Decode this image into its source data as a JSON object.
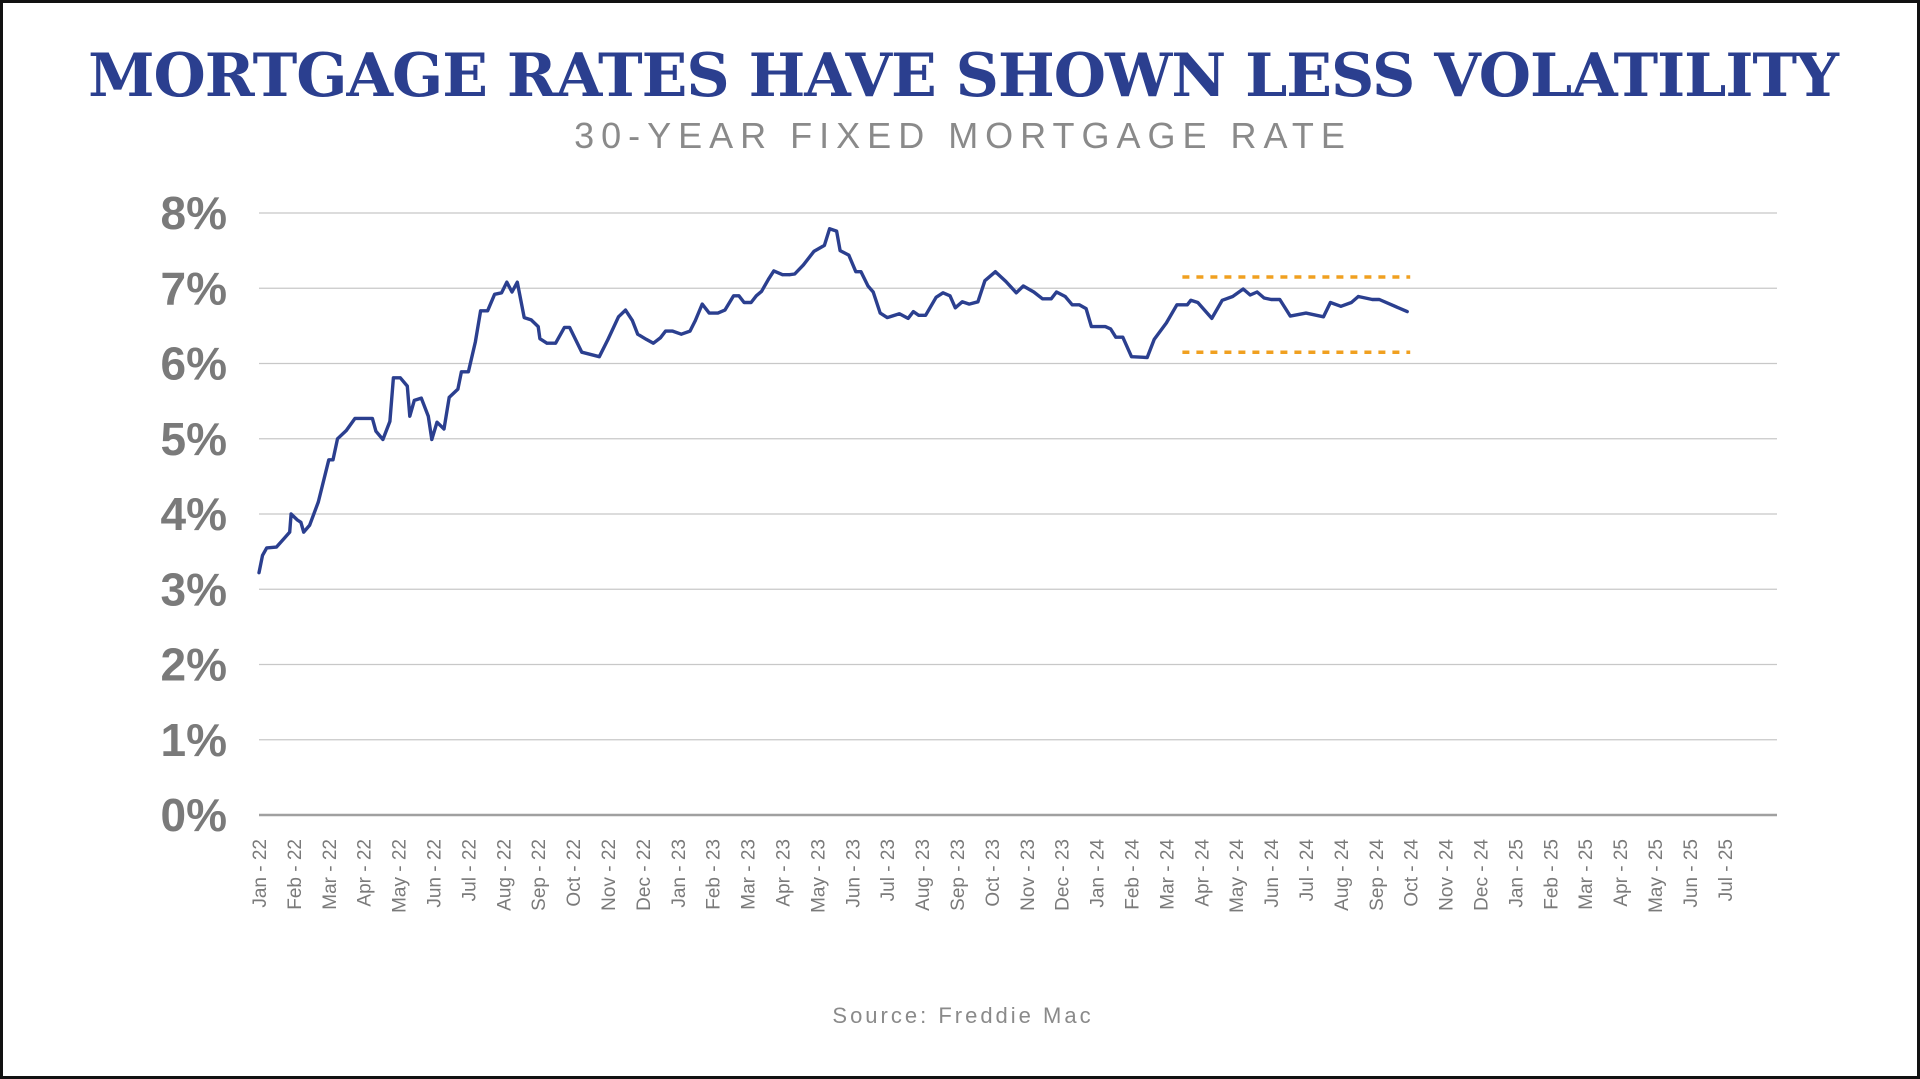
{
  "title": "MORTGAGE RATES HAVE SHOWN LESS VOLATILITY",
  "subtitle": "30-YEAR FIXED MORTGAGE RATE",
  "source": "Source: Freddie Mac",
  "colors": {
    "line": "#2b3f8f",
    "band": "#f0a020",
    "grid": "#c8c8c8",
    "axis": "#a0a0a0",
    "tick_text": "#7a7a7a"
  },
  "chart_data": {
    "type": "line",
    "title": "MORTGAGE RATES HAVE SHOWN LESS VOLATILITY",
    "subtitle": "30-YEAR FIXED MORTGAGE RATE",
    "xlabel": "",
    "ylabel": "",
    "ylim": [
      0,
      8
    ],
    "yticks": [
      {
        "value": 0,
        "label": "0%"
      },
      {
        "value": 1,
        "label": "1%"
      },
      {
        "value": 2,
        "label": "2%"
      },
      {
        "value": 3,
        "label": "3%"
      },
      {
        "value": 4,
        "label": "4%"
      },
      {
        "value": 5,
        "label": "5%"
      },
      {
        "value": 6,
        "label": "6%"
      },
      {
        "value": 7,
        "label": "7%"
      },
      {
        "value": 8,
        "label": "8%"
      }
    ],
    "grid": true,
    "legend": "none",
    "categories": [
      "Jan - 22",
      "Feb - 22",
      "Mar - 22",
      "Apr - 22",
      "May - 22",
      "Jun - 22",
      "Jul - 22",
      "Aug - 22",
      "Sep - 22",
      "Oct - 22",
      "Nov - 22",
      "Dec - 22",
      "Jan - 23",
      "Feb - 23",
      "Mar - 23",
      "Apr - 23",
      "May - 23",
      "Jun - 23",
      "Jul - 23",
      "Aug - 23",
      "Sep - 23",
      "Oct - 23",
      "Nov - 23",
      "Dec - 23",
      "Jan - 24",
      "Feb - 24",
      "Mar - 24",
      "Apr - 24",
      "May - 24",
      "Jun - 24",
      "Jul - 24",
      "Aug - 24",
      "Sep - 24",
      "Oct - 24",
      "Nov - 24",
      "Dec - 24",
      "Jan - 25",
      "Feb - 25",
      "Mar - 25",
      "Apr - 25",
      "May - 25",
      "Jun - 25",
      "Jul - 25"
    ],
    "series": [
      {
        "values": [
          [
            0.0,
            3.22
          ],
          [
            0.1,
            3.45
          ],
          [
            0.22,
            3.55
          ],
          [
            0.5,
            3.56
          ],
          [
            0.75,
            3.69
          ],
          [
            0.88,
            3.76
          ],
          [
            0.92,
            4.0
          ],
          [
            1.1,
            3.92
          ],
          [
            1.2,
            3.89
          ],
          [
            1.28,
            3.76
          ],
          [
            1.45,
            3.85
          ],
          [
            1.7,
            4.16
          ],
          [
            2.0,
            4.72
          ],
          [
            2.12,
            4.72
          ],
          [
            2.25,
            5.0
          ],
          [
            2.5,
            5.11
          ],
          [
            2.75,
            5.27
          ],
          [
            2.9,
            5.27
          ],
          [
            3.25,
            5.27
          ],
          [
            3.35,
            5.1
          ],
          [
            3.55,
            4.99
          ],
          [
            3.75,
            5.23
          ],
          [
            3.85,
            5.81
          ],
          [
            4.05,
            5.81
          ],
          [
            4.25,
            5.7
          ],
          [
            4.32,
            5.3
          ],
          [
            4.45,
            5.51
          ],
          [
            4.65,
            5.54
          ],
          [
            4.85,
            5.3
          ],
          [
            4.95,
            4.99
          ],
          [
            5.1,
            5.22
          ],
          [
            5.3,
            5.13
          ],
          [
            5.45,
            5.55
          ],
          [
            5.7,
            5.66
          ],
          [
            5.8,
            5.89
          ],
          [
            6.0,
            5.89
          ],
          [
            6.2,
            6.29
          ],
          [
            6.35,
            6.7
          ],
          [
            6.55,
            6.7
          ],
          [
            6.75,
            6.92
          ],
          [
            6.95,
            6.94
          ],
          [
            7.1,
            7.08
          ],
          [
            7.25,
            6.95
          ],
          [
            7.4,
            7.08
          ],
          [
            7.6,
            6.61
          ],
          [
            7.8,
            6.58
          ],
          [
            8.0,
            6.49
          ],
          [
            8.05,
            6.33
          ],
          [
            8.25,
            6.27
          ],
          [
            8.5,
            6.27
          ],
          [
            8.75,
            6.48
          ],
          [
            8.9,
            6.48
          ],
          [
            9.25,
            6.15
          ],
          [
            9.75,
            6.09
          ],
          [
            10.0,
            6.32
          ],
          [
            10.3,
            6.62
          ],
          [
            10.5,
            6.71
          ],
          [
            10.7,
            6.57
          ],
          [
            10.85,
            6.39
          ],
          [
            11.1,
            6.32
          ],
          [
            11.3,
            6.27
          ],
          [
            11.5,
            6.34
          ],
          [
            11.65,
            6.43
          ],
          [
            11.85,
            6.43
          ],
          [
            12.1,
            6.39
          ],
          [
            12.35,
            6.43
          ],
          [
            12.5,
            6.57
          ],
          [
            12.7,
            6.79
          ],
          [
            12.9,
            6.67
          ],
          [
            13.15,
            6.67
          ],
          [
            13.35,
            6.71
          ],
          [
            13.6,
            6.9
          ],
          [
            13.75,
            6.9
          ],
          [
            13.9,
            6.81
          ],
          [
            14.1,
            6.81
          ],
          [
            14.25,
            6.9
          ],
          [
            14.4,
            6.96
          ],
          [
            14.6,
            7.12
          ],
          [
            14.75,
            7.23
          ],
          [
            15.0,
            7.18
          ],
          [
            15.2,
            7.18
          ],
          [
            15.35,
            7.19
          ],
          [
            15.6,
            7.31
          ],
          [
            15.9,
            7.49
          ],
          [
            16.2,
            7.57
          ],
          [
            16.35,
            7.79
          ],
          [
            16.55,
            7.76
          ],
          [
            16.65,
            7.5
          ],
          [
            16.9,
            7.44
          ],
          [
            17.1,
            7.22
          ],
          [
            17.25,
            7.22
          ],
          [
            17.45,
            7.03
          ],
          [
            17.6,
            6.95
          ],
          [
            17.8,
            6.67
          ],
          [
            18.0,
            6.61
          ],
          [
            18.35,
            6.66
          ],
          [
            18.6,
            6.6
          ],
          [
            18.75,
            6.69
          ],
          [
            18.9,
            6.64
          ],
          [
            19.1,
            6.64
          ],
          [
            19.4,
            6.88
          ],
          [
            19.6,
            6.94
          ],
          [
            19.8,
            6.9
          ],
          [
            19.95,
            6.74
          ],
          [
            20.15,
            6.82
          ],
          [
            20.35,
            6.79
          ],
          [
            20.6,
            6.82
          ],
          [
            20.8,
            7.1
          ],
          [
            21.1,
            7.22
          ],
          [
            21.4,
            7.09
          ],
          [
            21.7,
            6.94
          ],
          [
            21.9,
            7.03
          ],
          [
            22.2,
            6.95
          ],
          [
            22.45,
            6.86
          ],
          [
            22.7,
            6.86
          ],
          [
            22.85,
            6.95
          ],
          [
            23.1,
            6.89
          ],
          [
            23.3,
            6.78
          ],
          [
            23.5,
            6.78
          ],
          [
            23.7,
            6.73
          ],
          [
            23.85,
            6.49
          ],
          [
            24.25,
            6.49
          ],
          [
            24.4,
            6.46
          ],
          [
            24.55,
            6.35
          ],
          [
            24.75,
            6.35
          ],
          [
            25.0,
            6.09
          ],
          [
            25.45,
            6.08
          ],
          [
            25.65,
            6.32
          ],
          [
            26.0,
            6.54
          ],
          [
            26.3,
            6.78
          ],
          [
            26.6,
            6.78
          ],
          [
            26.7,
            6.84
          ],
          [
            26.9,
            6.81
          ],
          [
            27.3,
            6.6
          ],
          [
            27.6,
            6.84
          ],
          [
            27.9,
            6.89
          ],
          [
            28.2,
            6.99
          ],
          [
            28.4,
            6.91
          ],
          [
            28.6,
            6.95
          ],
          [
            28.8,
            6.87
          ],
          [
            29.0,
            6.85
          ],
          [
            29.25,
            6.85
          ],
          [
            29.55,
            6.63
          ],
          [
            30.0,
            6.67
          ],
          [
            30.5,
            6.62
          ],
          [
            30.7,
            6.81
          ],
          [
            31.0,
            6.76
          ],
          [
            31.3,
            6.81
          ],
          [
            31.5,
            6.89
          ],
          [
            31.9,
            6.85
          ],
          [
            32.1,
            6.85
          ],
          [
            32.5,
            6.77
          ],
          [
            32.9,
            6.69
          ]
        ]
      }
    ],
    "reference_lines": [
      {
        "y": 7.15,
        "x_start": 26.0,
        "x_end": 32.9,
        "style": "dotted"
      },
      {
        "y": 6.15,
        "x_start": 26.0,
        "x_end": 32.9,
        "style": "dotted"
      }
    ]
  }
}
